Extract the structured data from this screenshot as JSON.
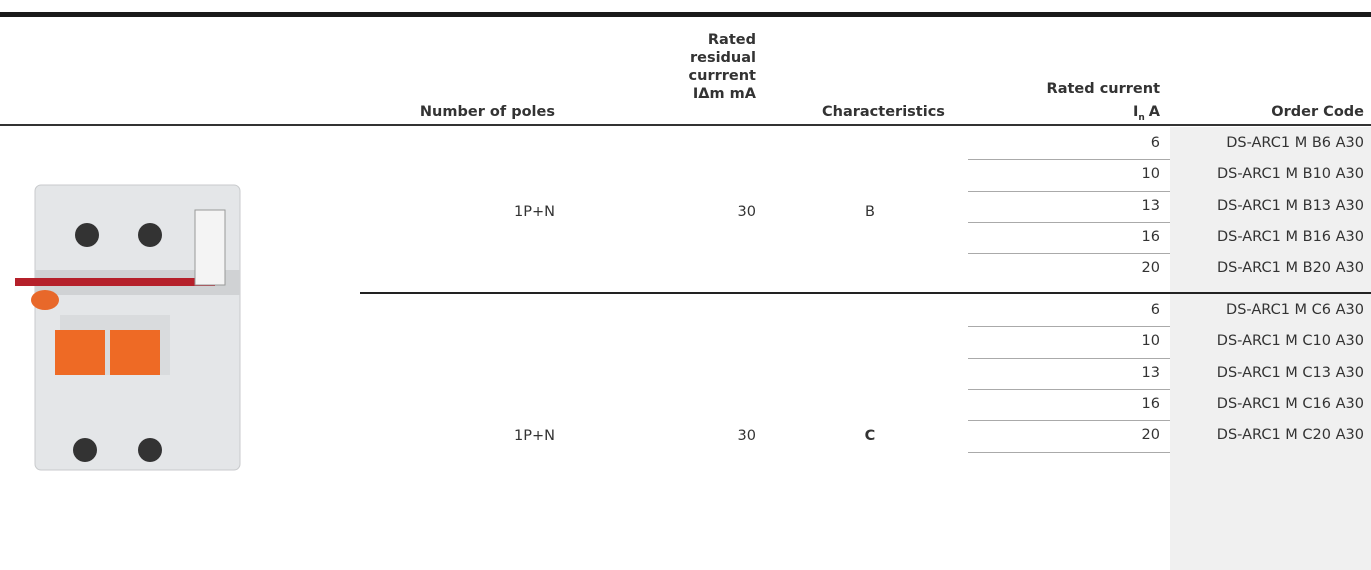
{
  "table": {
    "headers": {
      "poles": "Number of poles",
      "residual": "Rated\nresidual\ncurrrent\nIΔm mA",
      "characteristics": "Characteristics",
      "current": "Rated current",
      "current_symbol": "I",
      "current_subscript": "n",
      "current_unit": "A",
      "code": "Order Code"
    },
    "groups": [
      {
        "poles": "1P+N",
        "residual": 30,
        "characteristic": "B",
        "rows": [
          {
            "current": 6,
            "code": "DS-ARC1 M B6 A30"
          },
          {
            "current": 10,
            "code": "DS-ARC1 M B10 A30"
          },
          {
            "current": 13,
            "code": "DS-ARC1 M B13 A30"
          },
          {
            "current": 16,
            "code": "DS-ARC1 M B16 A30"
          },
          {
            "current": 20,
            "code": "DS-ARC1 M B20 A30"
          }
        ]
      },
      {
        "poles": "1P+N",
        "residual": 30,
        "characteristic": "C",
        "rows": [
          {
            "current": 6,
            "code": "DS-ARC1 M C6 A30"
          },
          {
            "current": 10,
            "code": "DS-ARC1 M C10 A30"
          },
          {
            "current": 13,
            "code": "DS-ARC1 M C13 A30"
          },
          {
            "current": 16,
            "code": "DS-ARC1 M C16 A30"
          },
          {
            "current": 20,
            "code": "DS-ARC1 M C20 A30"
          }
        ]
      }
    ]
  }
}
